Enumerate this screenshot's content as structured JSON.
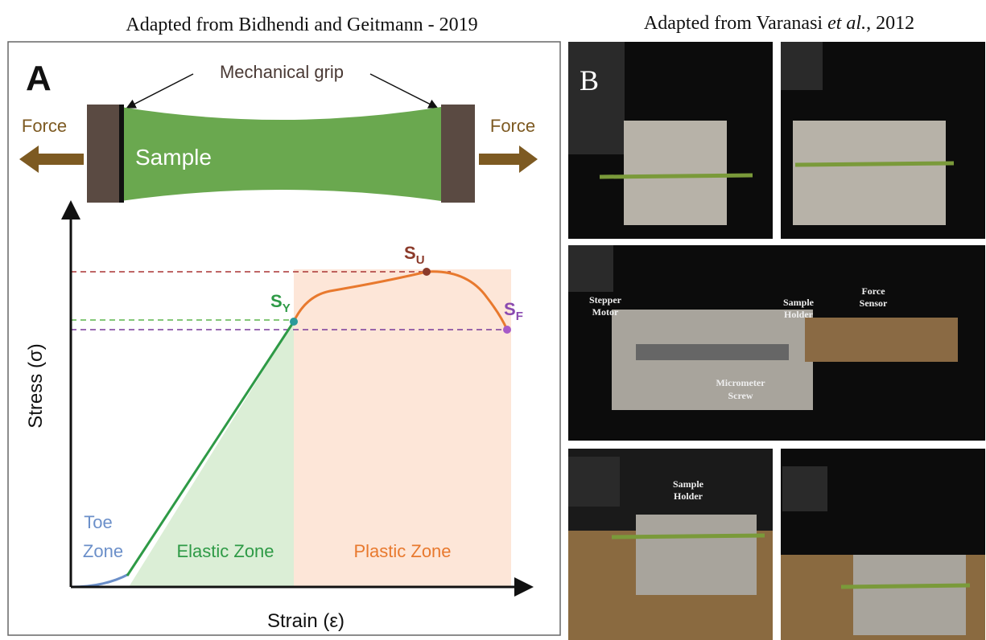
{
  "header": {
    "left_caption": "Adapted from Bidhendi and Geitmann - 2019",
    "right_caption": [
      "Adapted from Varanasi ",
      "et al.",
      ", 2012"
    ]
  },
  "panel_a": {
    "letter": "A",
    "grip_label": "Mechanical grip",
    "sample_label": "Sample",
    "force_left": "Force",
    "force_right": "Force",
    "y_axis_label": "Stress (σ)",
    "x_axis_label": "Strain (ε)",
    "points": [
      {
        "main": "S",
        "sub": "U"
      },
      {
        "main": "S",
        "sub": "Y"
      },
      {
        "main": "S",
        "sub": "F"
      }
    ],
    "zones": {
      "toe": [
        "Toe",
        "Zone"
      ],
      "elastic": "Elastic Zone",
      "plastic": "Plastic Zone"
    }
  },
  "panel_b": {
    "letter": "B",
    "photo_labels": [
      [
        "Stepper",
        "Motor"
      ],
      [
        "Sample",
        "Holder"
      ],
      [
        "Force",
        "Sensor"
      ],
      [
        "Micrometer",
        "Screw"
      ],
      [
        "Sample",
        "Holder"
      ]
    ]
  }
}
